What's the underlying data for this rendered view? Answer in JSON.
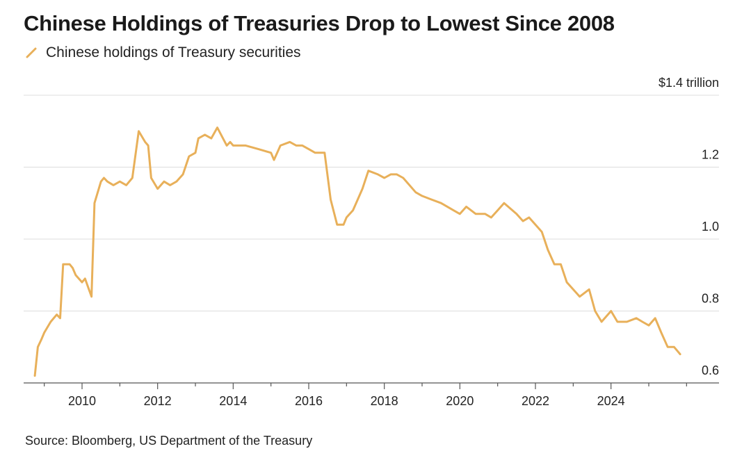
{
  "title": "Chinese Holdings of Treasuries Drop to Lowest Since 2008",
  "source": "Source: Bloomberg, US Department of the Treasury",
  "colors": {
    "series": "#e8b05a",
    "grid": "#dcdcdc",
    "axis": "#555555",
    "text": "#222222"
  },
  "chart_data": {
    "type": "line",
    "title": "Chinese Holdings of Treasuries Drop to Lowest Since 2008",
    "xlabel": "",
    "ylabel": "",
    "y_unit_label": "$1.4 trillion",
    "xlim": [
      2008.7,
      2026.0
    ],
    "ylim": [
      0.6,
      1.4
    ],
    "x_ticks": [
      2010,
      2012,
      2014,
      2016,
      2018,
      2020,
      2022,
      2024
    ],
    "x_tick_labels": [
      "2010",
      "2012",
      "2014",
      "2016",
      "2018",
      "2020",
      "2022",
      "2024"
    ],
    "y_ticks": [
      0.6,
      0.8,
      1.0,
      1.2,
      1.4
    ],
    "y_tick_labels": [
      "0.6",
      "0.8",
      "1.0",
      "1.2",
      "$1.4 trillion"
    ],
    "grid": "horizontal",
    "legend": "top-left",
    "series": [
      {
        "name": "Chinese holdings of Treasury securities",
        "color": "#e8b05a",
        "x": [
          2008.75,
          2008.83,
          2008.92,
          2009.0,
          2009.17,
          2009.33,
          2009.42,
          2009.5,
          2009.58,
          2009.67,
          2009.75,
          2009.83,
          2010.0,
          2010.08,
          2010.25,
          2010.33,
          2010.5,
          2010.58,
          2010.67,
          2010.83,
          2011.0,
          2011.17,
          2011.33,
          2011.5,
          2011.67,
          2011.75,
          2011.83,
          2012.0,
          2012.17,
          2012.33,
          2012.5,
          2012.67,
          2012.83,
          2013.0,
          2013.08,
          2013.25,
          2013.42,
          2013.58,
          2013.83,
          2013.92,
          2014.0,
          2014.33,
          2014.67,
          2015.0,
          2015.08,
          2015.25,
          2015.5,
          2015.67,
          2015.83,
          2016.0,
          2016.17,
          2016.42,
          2016.58,
          2016.75,
          2016.92,
          2017.0,
          2017.17,
          2017.42,
          2017.58,
          2017.83,
          2018.0,
          2018.17,
          2018.33,
          2018.5,
          2018.83,
          2019.0,
          2019.25,
          2019.5,
          2019.83,
          2020.0,
          2020.17,
          2020.42,
          2020.67,
          2020.83,
          2021.0,
          2021.17,
          2021.5,
          2021.67,
          2021.83,
          2022.0,
          2022.17,
          2022.33,
          2022.5,
          2022.67,
          2022.83,
          2023.0,
          2023.17,
          2023.42,
          2023.58,
          2023.75,
          2024.0,
          2024.17,
          2024.42,
          2024.67,
          2024.83,
          2025.0,
          2025.17,
          2025.33,
          2025.5,
          2025.67,
          2025.83
        ],
        "y": [
          0.62,
          0.7,
          0.72,
          0.74,
          0.77,
          0.79,
          0.78,
          0.93,
          0.93,
          0.93,
          0.92,
          0.9,
          0.88,
          0.89,
          0.84,
          1.1,
          1.16,
          1.17,
          1.16,
          1.15,
          1.16,
          1.15,
          1.17,
          1.3,
          1.27,
          1.26,
          1.17,
          1.14,
          1.16,
          1.15,
          1.16,
          1.18,
          1.23,
          1.24,
          1.28,
          1.29,
          1.28,
          1.31,
          1.26,
          1.27,
          1.26,
          1.26,
          1.25,
          1.24,
          1.22,
          1.26,
          1.27,
          1.26,
          1.26,
          1.25,
          1.24,
          1.24,
          1.11,
          1.04,
          1.04,
          1.06,
          1.08,
          1.14,
          1.19,
          1.18,
          1.17,
          1.18,
          1.18,
          1.17,
          1.13,
          1.12,
          1.11,
          1.1,
          1.08,
          1.07,
          1.09,
          1.07,
          1.07,
          1.06,
          1.08,
          1.1,
          1.07,
          1.05,
          1.06,
          1.04,
          1.02,
          0.97,
          0.93,
          0.93,
          0.88,
          0.86,
          0.84,
          0.86,
          0.8,
          0.77,
          0.8,
          0.77,
          0.77,
          0.78,
          0.77,
          0.76,
          0.78,
          0.74,
          0.7,
          0.7,
          0.68
        ]
      }
    ]
  }
}
